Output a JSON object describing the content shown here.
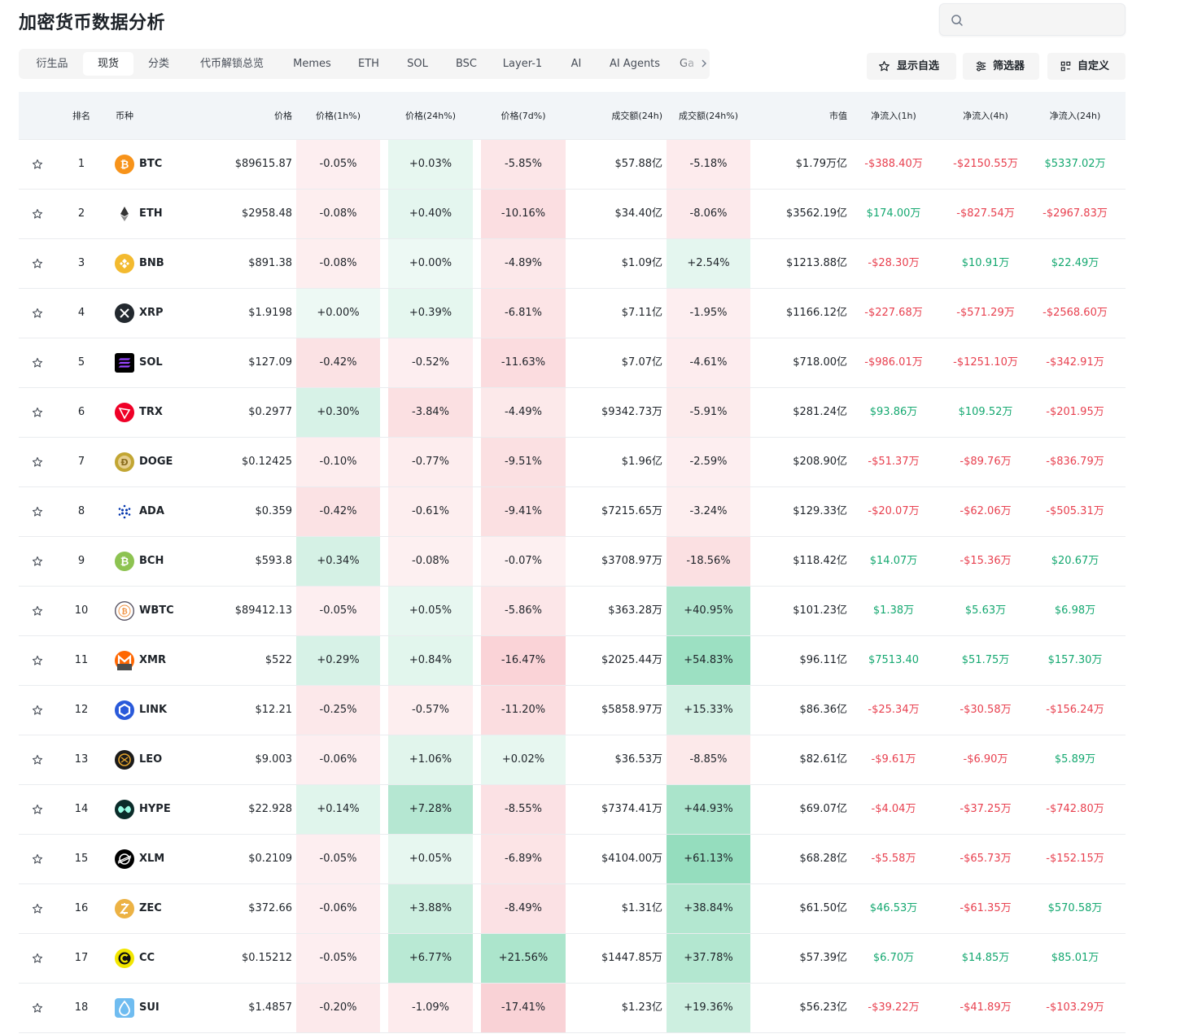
{
  "page": {
    "title": "加密货币数据分析",
    "search_placeholder": ""
  },
  "tabs": [
    {
      "label": "衍生品",
      "active": false
    },
    {
      "label": "现货",
      "active": true
    },
    {
      "label": "分类",
      "active": false
    },
    {
      "label": "代币解锁总览",
      "active": false
    },
    {
      "label": "Memes",
      "active": false
    },
    {
      "label": "ETH",
      "active": false
    },
    {
      "label": "SOL",
      "active": false
    },
    {
      "label": "BSC",
      "active": false
    },
    {
      "label": "Layer-1",
      "active": false
    },
    {
      "label": "AI",
      "active": false
    },
    {
      "label": "AI Agents",
      "active": false
    },
    {
      "label": "Ga",
      "active": false
    }
  ],
  "toolbar": {
    "watchlist_label": "显示自选",
    "filter_label": "筛选器",
    "customize_label": "自定义"
  },
  "columns": {
    "rank": "排名",
    "coin": "币种",
    "price": "价格",
    "p1h": "价格(1h%)",
    "p24h": "价格(24h%)",
    "p7d": "价格(7d%)",
    "vol24h": "成交额(24h)",
    "vol24hp": "成交额(24h%)",
    "mcap": "市值",
    "in1h": "净流入(1h)",
    "in4h": "净流入(4h)",
    "in24h": "净流入(24h)"
  },
  "colors": {
    "positive": "#14a870",
    "negative": "#e8404f",
    "header_bg": "#f2f5f8",
    "tab_bar_bg": "#f5f5f5"
  },
  "rows": [
    {
      "rank": "1",
      "symbol": "BTC",
      "icon": "bitcoin-icon",
      "icon_color": "#f7931a",
      "price": "$89615.87",
      "p1h": "-0.05%",
      "p24h": "+0.03%",
      "p7d": "-5.85%",
      "vol": "$57.88亿",
      "volp": "-5.18%",
      "mcap": "$1.79万亿",
      "in1h": "-$388.40万",
      "in4h": "-$2150.55万",
      "in24h": "$5337.02万"
    },
    {
      "rank": "2",
      "symbol": "ETH",
      "icon": "ethereum-icon",
      "icon_color": "#3c3c3d",
      "price": "$2958.48",
      "p1h": "-0.08%",
      "p24h": "+0.40%",
      "p7d": "-10.16%",
      "vol": "$34.40亿",
      "volp": "-8.06%",
      "mcap": "$3562.19亿",
      "in1h": "$174.00万",
      "in4h": "-$827.54万",
      "in24h": "-$2967.83万"
    },
    {
      "rank": "3",
      "symbol": "BNB",
      "icon": "bnb-icon",
      "icon_color": "#f3ba2f",
      "price": "$891.38",
      "p1h": "-0.08%",
      "p24h": "+0.00%",
      "p7d": "-4.89%",
      "vol": "$1.09亿",
      "volp": "+2.54%",
      "mcap": "$1213.88亿",
      "in1h": "-$28.30万",
      "in4h": "$10.91万",
      "in24h": "$22.49万"
    },
    {
      "rank": "4",
      "symbol": "XRP",
      "icon": "xrp-icon",
      "icon_color": "#23292f",
      "price": "$1.9198",
      "p1h": "+0.00%",
      "p24h": "+0.39%",
      "p7d": "-6.81%",
      "vol": "$7.11亿",
      "volp": "-1.95%",
      "mcap": "$1166.12亿",
      "in1h": "-$227.68万",
      "in4h": "-$571.29万",
      "in24h": "-$2568.60万"
    },
    {
      "rank": "5",
      "symbol": "SOL",
      "icon": "solana-icon",
      "icon_color": "#000000",
      "price": "$127.09",
      "p1h": "-0.42%",
      "p24h": "-0.52%",
      "p7d": "-11.63%",
      "vol": "$7.07亿",
      "volp": "-4.61%",
      "mcap": "$718.00亿",
      "in1h": "-$986.01万",
      "in4h": "-$1251.10万",
      "in24h": "-$342.91万"
    },
    {
      "rank": "6",
      "symbol": "TRX",
      "icon": "tron-icon",
      "icon_color": "#ef0027",
      "price": "$0.2977",
      "p1h": "+0.30%",
      "p24h": "-3.84%",
      "p7d": "-4.49%",
      "vol": "$9342.73万",
      "volp": "-5.91%",
      "mcap": "$281.24亿",
      "in1h": "$93.86万",
      "in4h": "$109.52万",
      "in24h": "-$201.95万"
    },
    {
      "rank": "7",
      "symbol": "DOGE",
      "icon": "dogecoin-icon",
      "icon_color": "#c2a633",
      "price": "$0.12425",
      "p1h": "-0.10%",
      "p24h": "-0.77%",
      "p7d": "-9.51%",
      "vol": "$1.96亿",
      "volp": "-2.59%",
      "mcap": "$208.90亿",
      "in1h": "-$51.37万",
      "in4h": "-$89.76万",
      "in24h": "-$836.79万"
    },
    {
      "rank": "8",
      "symbol": "ADA",
      "icon": "cardano-icon",
      "icon_color": "#0033ad",
      "price": "$0.359",
      "p1h": "-0.42%",
      "p24h": "-0.61%",
      "p7d": "-9.41%",
      "vol": "$7215.65万",
      "volp": "-3.24%",
      "mcap": "$129.33亿",
      "in1h": "-$20.07万",
      "in4h": "-$62.06万",
      "in24h": "-$505.31万"
    },
    {
      "rank": "9",
      "symbol": "BCH",
      "icon": "bitcoin-cash-icon",
      "icon_color": "#8dc351",
      "price": "$593.8",
      "p1h": "+0.34%",
      "p24h": "-0.08%",
      "p7d": "-0.07%",
      "vol": "$3708.97万",
      "volp": "-18.56%",
      "mcap": "$118.42亿",
      "in1h": "$14.07万",
      "in4h": "-$15.36万",
      "in24h": "$20.67万"
    },
    {
      "rank": "10",
      "symbol": "WBTC",
      "icon": "wrapped-bitcoin-icon",
      "icon_color": "#f09242",
      "price": "$89412.13",
      "p1h": "-0.05%",
      "p24h": "+0.05%",
      "p7d": "-5.86%",
      "vol": "$363.28万",
      "volp": "+40.95%",
      "mcap": "$101.23亿",
      "in1h": "$1.38万",
      "in4h": "$5.63万",
      "in24h": "$6.98万"
    },
    {
      "rank": "11",
      "symbol": "XMR",
      "icon": "monero-icon",
      "icon_color": "#ff6600",
      "price": "$522",
      "p1h": "+0.29%",
      "p24h": "+0.84%",
      "p7d": "-16.47%",
      "vol": "$2025.44万",
      "volp": "+54.83%",
      "mcap": "$96.11亿",
      "in1h": "$7513.40",
      "in4h": "$51.75万",
      "in24h": "$157.30万"
    },
    {
      "rank": "12",
      "symbol": "LINK",
      "icon": "chainlink-icon",
      "icon_color": "#2a5ada",
      "price": "$12.21",
      "p1h": "-0.25%",
      "p24h": "-0.57%",
      "p7d": "-11.20%",
      "vol": "$5858.97万",
      "volp": "+15.33%",
      "mcap": "$86.36亿",
      "in1h": "-$25.34万",
      "in4h": "-$30.58万",
      "in24h": "-$156.24万"
    },
    {
      "rank": "13",
      "symbol": "LEO",
      "icon": "unus-sed-leo-icon",
      "icon_color": "#1b1b1b",
      "price": "$9.003",
      "p1h": "-0.06%",
      "p24h": "+1.06%",
      "p7d": "+0.02%",
      "vol": "$36.53万",
      "volp": "-8.85%",
      "mcap": "$82.61亿",
      "in1h": "-$9.61万",
      "in4h": "-$6.90万",
      "in24h": "$5.89万"
    },
    {
      "rank": "14",
      "symbol": "HYPE",
      "icon": "hyperliquid-icon",
      "icon_color": "#0b2c2a",
      "price": "$22.928",
      "p1h": "+0.14%",
      "p24h": "+7.28%",
      "p7d": "-8.55%",
      "vol": "$7374.41万",
      "volp": "+44.93%",
      "mcap": "$69.07亿",
      "in1h": "-$4.04万",
      "in4h": "-$37.25万",
      "in24h": "-$742.80万"
    },
    {
      "rank": "15",
      "symbol": "XLM",
      "icon": "stellar-icon",
      "icon_color": "#000000",
      "price": "$0.2109",
      "p1h": "-0.05%",
      "p24h": "+0.05%",
      "p7d": "-6.89%",
      "vol": "$4104.00万",
      "volp": "+61.13%",
      "mcap": "$68.28亿",
      "in1h": "-$5.58万",
      "in4h": "-$65.73万",
      "in24h": "-$152.15万"
    },
    {
      "rank": "16",
      "symbol": "ZEC",
      "icon": "zcash-icon",
      "icon_color": "#ecb244",
      "price": "$372.66",
      "p1h": "-0.06%",
      "p24h": "+3.88%",
      "p7d": "-8.49%",
      "vol": "$1.31亿",
      "volp": "+38.84%",
      "mcap": "$61.50亿",
      "in1h": "$46.53万",
      "in4h": "-$61.35万",
      "in24h": "$570.58万"
    },
    {
      "rank": "17",
      "symbol": "CC",
      "icon": "canton-coin-icon",
      "icon_color": "#f2e600",
      "price": "$0.15212",
      "p1h": "-0.05%",
      "p24h": "+6.77%",
      "p7d": "+21.56%",
      "vol": "$1447.85万",
      "volp": "+37.78%",
      "mcap": "$57.39亿",
      "in1h": "$6.70万",
      "in4h": "$14.85万",
      "in24h": "$85.01万"
    },
    {
      "rank": "18",
      "symbol": "SUI",
      "icon": "sui-icon",
      "icon_color": "#6fbcf0",
      "price": "$1.4857",
      "p1h": "-0.20%",
      "p24h": "-1.09%",
      "p7d": "-17.41%",
      "vol": "$1.23亿",
      "volp": "+19.36%",
      "mcap": "$56.23亿",
      "in1h": "-$39.22万",
      "in4h": "-$41.89万",
      "in24h": "-$103.29万"
    }
  ]
}
